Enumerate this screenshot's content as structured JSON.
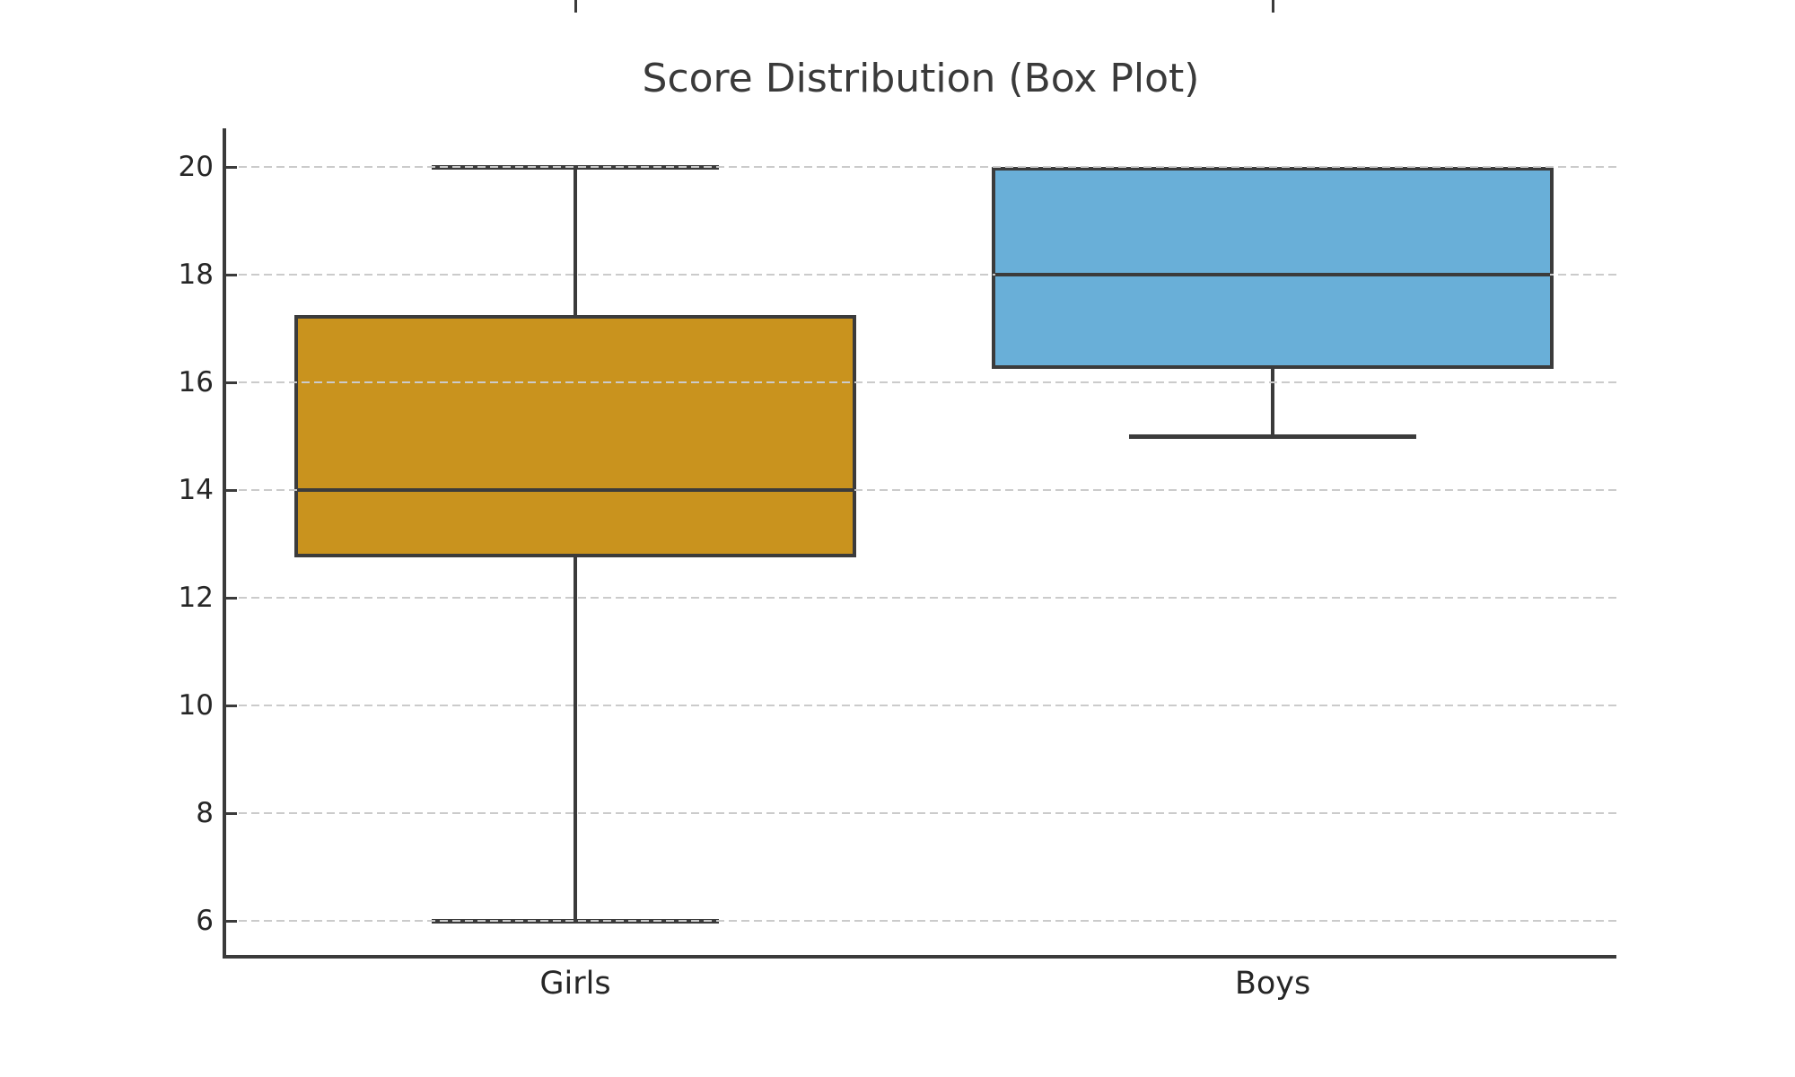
{
  "title": "Score Distribution (Box Plot)",
  "colors": {
    "background": "#FFFFFF",
    "line": "#3B3B3B",
    "grid": "#CBCBCB",
    "title_text": "#3A3A3A",
    "tick_label_text": "#262626",
    "girls_box": "#C9931E",
    "boys_box": "#69AFD8"
  },
  "chart_data": {
    "type": "boxplot",
    "title": "Score Distribution (Box Plot)",
    "categories": [
      "Girls",
      "Boys"
    ],
    "series": [
      {
        "name": "Girls",
        "min": 6,
        "q1": 12.75,
        "median": 14,
        "q3": 17.25,
        "max": 20,
        "color": "#C9931E"
      },
      {
        "name": "Boys",
        "min": 15,
        "q1": 16.25,
        "median": 18,
        "q3": 20,
        "max": 20,
        "color": "#69AFD8"
      }
    ],
    "xlabel": "",
    "ylabel": "",
    "y_ticks": [
      6,
      8,
      10,
      12,
      14,
      16,
      18,
      20
    ],
    "ylim": [
      5.3,
      20.72
    ],
    "grid": "horizontal-dashed",
    "grid_above_boxes": true,
    "legend": "none",
    "orientation": "vertical"
  }
}
